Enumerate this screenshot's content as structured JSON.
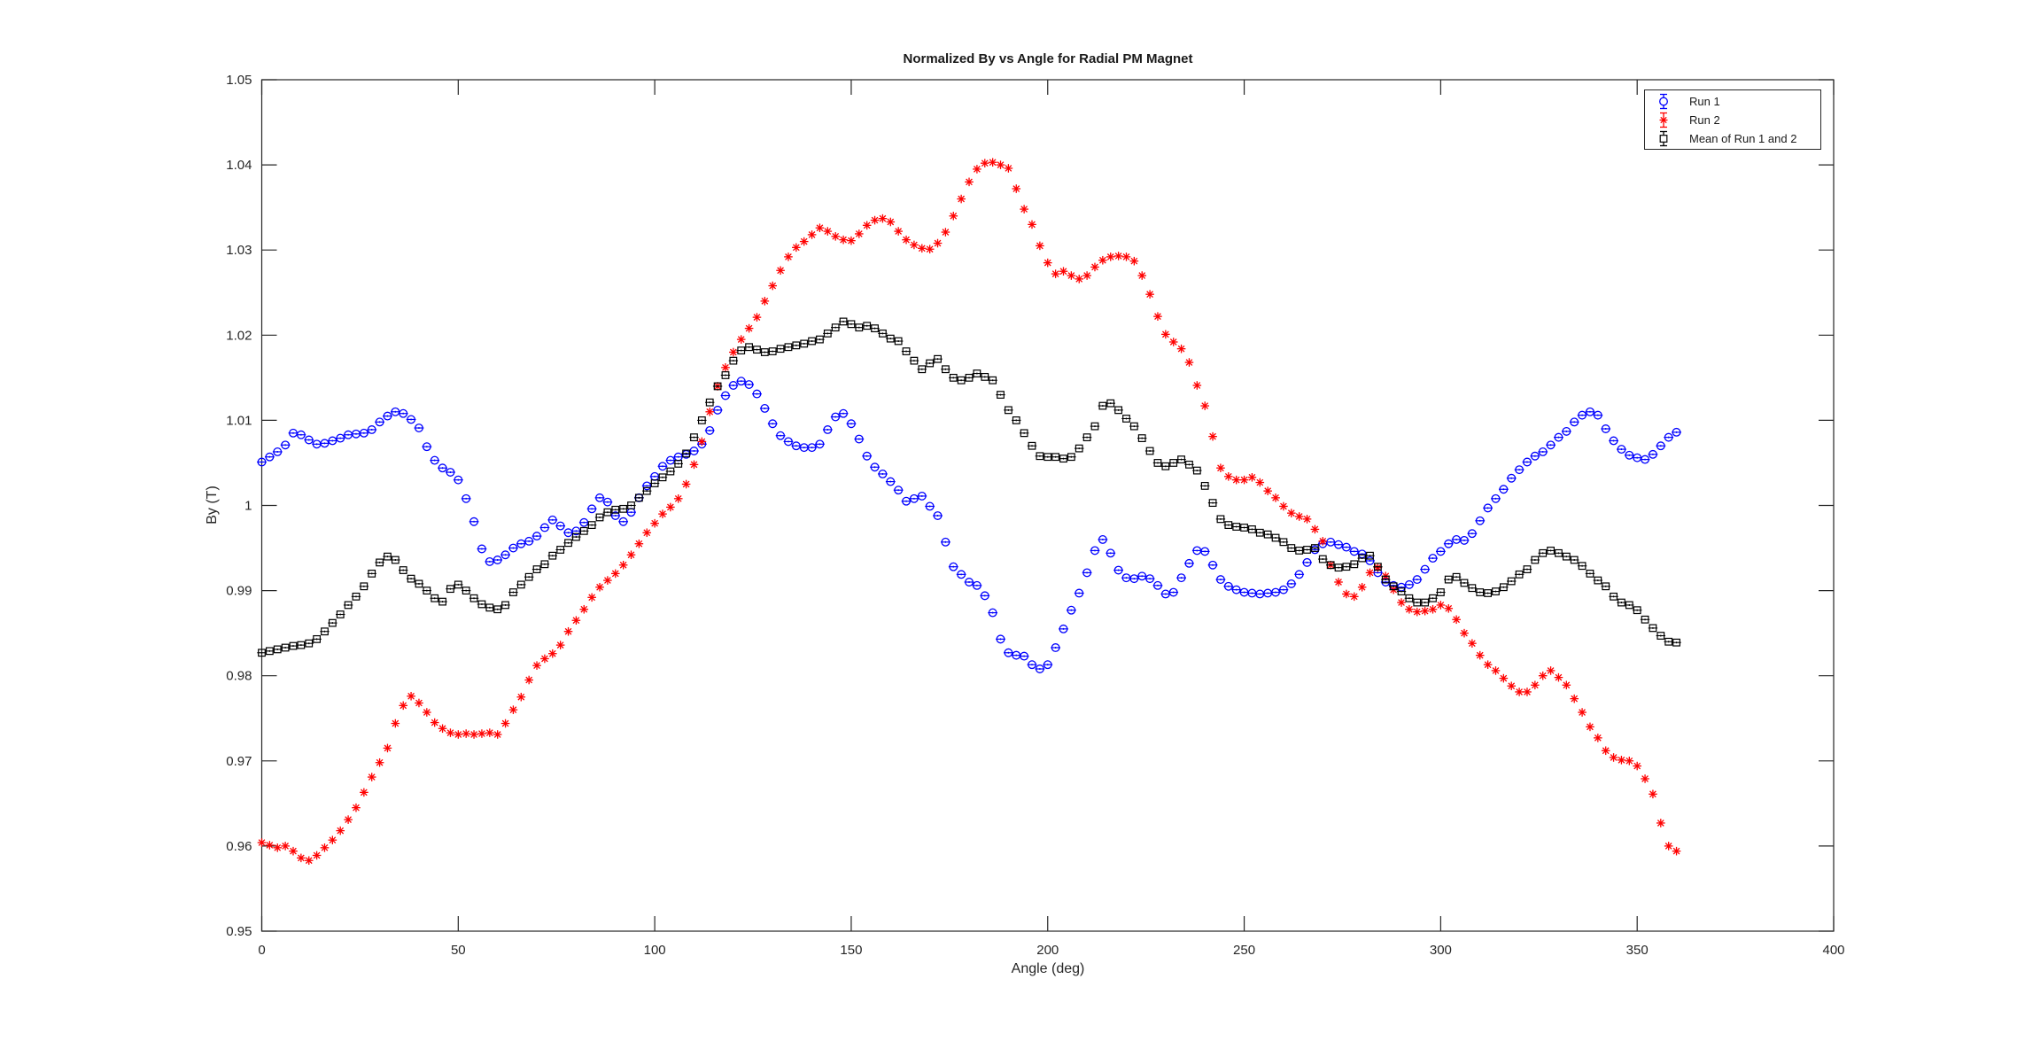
{
  "figure": {
    "title": "Normalized By vs Angle for Radial PM Magnet",
    "xlabel": "Angle (deg)",
    "ylabel": "By (T)"
  },
  "legend": {
    "position": "top-right",
    "items": [
      {
        "label": "Run 1",
        "marker": "circle-errorbar-icon",
        "color": "#0000ff"
      },
      {
        "label": "Run 2",
        "marker": "asterisk-errorbar-icon",
        "color": "#ff0000"
      },
      {
        "label": "Mean of Run 1 and 2",
        "marker": "square-errorbar-icon",
        "color": "#000000"
      }
    ]
  },
  "axis": {
    "xlim": [
      0,
      400
    ],
    "ylim": [
      0.95,
      1.05
    ],
    "xtick_values": [
      0,
      50,
      100,
      150,
      200,
      250,
      300,
      350,
      400
    ],
    "xtick_labels": [
      "0",
      "50",
      "100",
      "150",
      "200",
      "250",
      "300",
      "350",
      "400"
    ],
    "ytick_values": [
      0.95,
      0.96,
      0.97,
      0.98,
      0.99,
      1.0,
      1.01,
      1.02,
      1.03,
      1.04,
      1.05
    ],
    "ytick_labels": [
      "0.95",
      "0.96",
      "0.97",
      "0.98",
      "0.99",
      "1",
      "1.01",
      "1.02",
      "1.03",
      "1.04",
      "1.05"
    ],
    "grid": false,
    "axis_color": "#262626",
    "background": "#ffffff"
  },
  "chart_data": {
    "type": "scatter",
    "title": "Normalized By vs Angle for Radial PM Magnet",
    "xlabel": "Angle (deg)",
    "ylabel": "By (T)",
    "xlim": [
      0,
      400
    ],
    "ylim": [
      0.95,
      1.05
    ],
    "grid": false,
    "legend_position": "top-right",
    "x": [
      0,
      2,
      4,
      6,
      8,
      10,
      12,
      14,
      16,
      18,
      20,
      22,
      24,
      26,
      28,
      30,
      32,
      34,
      36,
      38,
      40,
      42,
      44,
      46,
      48,
      50,
      52,
      54,
      56,
      58,
      60,
      62,
      64,
      66,
      68,
      70,
      72,
      74,
      76,
      78,
      80,
      82,
      84,
      86,
      88,
      90,
      92,
      94,
      96,
      98,
      100,
      102,
      104,
      106,
      108,
      110,
      112,
      114,
      116,
      118,
      120,
      122,
      124,
      126,
      128,
      130,
      132,
      134,
      136,
      138,
      140,
      142,
      144,
      146,
      148,
      150,
      152,
      154,
      156,
      158,
      160,
      162,
      164,
      166,
      168,
      170,
      172,
      174,
      176,
      178,
      180,
      182,
      184,
      186,
      188,
      190,
      192,
      194,
      196,
      198,
      200,
      202,
      204,
      206,
      208,
      210,
      212,
      214,
      216,
      218,
      220,
      222,
      224,
      226,
      228,
      230,
      232,
      234,
      236,
      238,
      240,
      242,
      244,
      246,
      248,
      250,
      252,
      254,
      256,
      258,
      260,
      262,
      264,
      266,
      268,
      270,
      272,
      274,
      276,
      278,
      280,
      282,
      284,
      286,
      288,
      290,
      292,
      294,
      296,
      298,
      300,
      302,
      304,
      306,
      308,
      310,
      312,
      314,
      316,
      318,
      320,
      322,
      324,
      326,
      328,
      330,
      332,
      334,
      336,
      338,
      340,
      342,
      344,
      346,
      348,
      350,
      352,
      354,
      356,
      358,
      360
    ],
    "series": [
      {
        "name": "Run 1",
        "marker": "circle",
        "color": "#0000ff",
        "yerr": 0.0001,
        "y": [
          1.0051,
          1.0057,
          1.0063,
          1.0071,
          1.0085,
          1.0083,
          1.0077,
          1.0072,
          1.0073,
          1.0076,
          1.0079,
          1.0083,
          1.0084,
          1.0085,
          1.0089,
          1.0098,
          1.0105,
          1.011,
          1.0108,
          1.0101,
          1.0091,
          1.0069,
          1.0053,
          1.0044,
          1.0039,
          1.003,
          1.0008,
          0.9981,
          0.9949,
          0.9934,
          0.9936,
          0.9942,
          0.995,
          0.9955,
          0.9958,
          0.9964,
          0.9974,
          0.9983,
          0.9976,
          0.9968,
          0.997,
          0.998,
          0.9996,
          1.0009,
          1.0004,
          0.9988,
          0.9981,
          0.9992,
          1.0009,
          1.0023,
          1.0034,
          1.0046,
          1.0053,
          1.0057,
          1.006,
          1.0064,
          1.0072,
          1.0088,
          1.0112,
          1.0129,
          1.0141,
          1.0146,
          1.0142,
          1.0131,
          1.0114,
          1.0096,
          1.0082,
          1.0075,
          1.007,
          1.0068,
          1.0068,
          1.0072,
          1.0089,
          1.0104,
          1.0108,
          1.0096,
          1.0078,
          1.0058,
          1.0045,
          1.0037,
          1.0028,
          1.0018,
          1.0005,
          1.0008,
          1.0011,
          0.9999,
          0.9988,
          0.9957,
          0.9928,
          0.9919,
          0.991,
          0.9906,
          0.9894,
          0.9874,
          0.9843,
          0.9827,
          0.9824,
          0.9823,
          0.9813,
          0.9808,
          0.9813,
          0.9833,
          0.9855,
          0.9877,
          0.9897,
          0.9921,
          0.9947,
          0.996,
          0.9944,
          0.9924,
          0.9915,
          0.9914,
          0.9917,
          0.9914,
          0.9906,
          0.9896,
          0.9898,
          0.9915,
          0.9932,
          0.9947,
          0.9946,
          0.993,
          0.9913,
          0.9905,
          0.9901,
          0.9898,
          0.9897,
          0.9896,
          0.9897,
          0.9898,
          0.9901,
          0.9908,
          0.9919,
          0.9933,
          0.9948,
          0.9955,
          0.9957,
          0.9954,
          0.9951,
          0.9946,
          0.9943,
          0.9935,
          0.9921,
          0.991,
          0.9906,
          0.9904,
          0.9907,
          0.9913,
          0.9925,
          0.9938,
          0.9946,
          0.9955,
          0.996,
          0.9959,
          0.9967,
          0.9982,
          0.9997,
          1.0008,
          1.0019,
          1.0032,
          1.0042,
          1.0051,
          1.0058,
          1.0063,
          1.0071,
          1.008,
          1.0087,
          1.0098,
          1.0106,
          1.011,
          1.0106,
          1.009,
          1.0076,
          1.0066,
          1.0059,
          1.0056,
          1.0054,
          1.006,
          1.007,
          1.008,
          1.0086
        ]
      },
      {
        "name": "Run 2",
        "marker": "asterisk",
        "color": "#ff0000",
        "yerr": 0.0001,
        "y": [
          0.9604,
          0.9601,
          0.9598,
          0.96,
          0.9594,
          0.9586,
          0.9583,
          0.9589,
          0.9598,
          0.9607,
          0.9618,
          0.9631,
          0.9645,
          0.9663,
          0.9681,
          0.9698,
          0.9715,
          0.9744,
          0.9765,
          0.9776,
          0.9768,
          0.9757,
          0.9745,
          0.9738,
          0.9733,
          0.9731,
          0.9732,
          0.9731,
          0.9732,
          0.9733,
          0.9731,
          0.9744,
          0.976,
          0.9775,
          0.9795,
          0.9812,
          0.982,
          0.9826,
          0.9836,
          0.9852,
          0.9865,
          0.9878,
          0.9892,
          0.9904,
          0.9912,
          0.992,
          0.993,
          0.9942,
          0.9955,
          0.9968,
          0.9979,
          0.999,
          0.9998,
          1.0008,
          1.0025,
          1.0048,
          1.0075,
          1.011,
          1.014,
          1.0162,
          1.018,
          1.0195,
          1.0208,
          1.0221,
          1.024,
          1.0258,
          1.0276,
          1.0292,
          1.0303,
          1.031,
          1.0318,
          1.0326,
          1.0322,
          1.0316,
          1.0312,
          1.0311,
          1.0319,
          1.0329,
          1.0335,
          1.0337,
          1.0333,
          1.0322,
          1.0312,
          1.0306,
          1.0302,
          1.0301,
          1.0308,
          1.0321,
          1.034,
          1.036,
          1.038,
          1.0395,
          1.0402,
          1.0403,
          1.04,
          1.0396,
          1.0372,
          1.0348,
          1.033,
          1.0305,
          1.0285,
          1.0272,
          1.0275,
          1.027,
          1.0266,
          1.027,
          1.028,
          1.0288,
          1.0292,
          1.0293,
          1.0292,
          1.0287,
          1.027,
          1.0248,
          1.0222,
          1.0201,
          1.0192,
          1.0184,
          1.0168,
          1.0141,
          1.0117,
          1.0081,
          1.0044,
          1.0034,
          1.003,
          1.003,
          1.0033,
          1.0027,
          1.0017,
          1.0009,
          0.9999,
          0.9991,
          0.9987,
          0.9984,
          0.9972,
          0.9958,
          0.993,
          0.991,
          0.9896,
          0.9893,
          0.9904,
          0.9921,
          0.9927,
          0.9917,
          0.9901,
          0.9886,
          0.9878,
          0.9875,
          0.9876,
          0.9878,
          0.9883,
          0.9879,
          0.9866,
          0.985,
          0.9838,
          0.9824,
          0.9813,
          0.9806,
          0.9797,
          0.9788,
          0.9781,
          0.9781,
          0.9789,
          0.98,
          0.9806,
          0.9798,
          0.9789,
          0.9773,
          0.9757,
          0.974,
          0.9727,
          0.9712,
          0.9704,
          0.9701,
          0.97,
          0.9694,
          0.9679,
          0.9661,
          0.9627,
          0.96,
          0.9594
        ]
      },
      {
        "name": "Mean of Run 1 and 2",
        "marker": "square",
        "color": "#000000",
        "yerr": 0.0001,
        "y": [
          0.9827,
          0.9829,
          0.9831,
          0.9833,
          0.9835,
          0.9836,
          0.9838,
          0.9843,
          0.9852,
          0.9862,
          0.9872,
          0.9883,
          0.9893,
          0.9905,
          0.992,
          0.9933,
          0.994,
          0.9936,
          0.9924,
          0.9914,
          0.9908,
          0.99,
          0.9891,
          0.9887,
          0.9902,
          0.9907,
          0.99,
          0.9891,
          0.9884,
          0.988,
          0.9878,
          0.9883,
          0.9898,
          0.9907,
          0.9916,
          0.9925,
          0.9931,
          0.9941,
          0.9948,
          0.9956,
          0.9963,
          0.997,
          0.9977,
          0.9986,
          0.9992,
          0.9995,
          0.9996,
          1.0,
          1.0009,
          1.0017,
          1.0026,
          1.0033,
          1.004,
          1.0049,
          1.0061,
          1.008,
          1.01,
          1.0121,
          1.014,
          1.0153,
          1.017,
          1.0182,
          1.0186,
          1.0183,
          1.018,
          1.0181,
          1.0184,
          1.0186,
          1.0188,
          1.019,
          1.0193,
          1.0195,
          1.0202,
          1.0209,
          1.0216,
          1.0213,
          1.0209,
          1.0211,
          1.0208,
          1.0202,
          1.0196,
          1.0193,
          1.0181,
          1.017,
          1.016,
          1.0167,
          1.0172,
          1.016,
          1.015,
          1.0147,
          1.015,
          1.0155,
          1.0151,
          1.0147,
          1.013,
          1.0112,
          1.01,
          1.0085,
          1.007,
          1.0058,
          1.0057,
          1.0057,
          1.0055,
          1.0057,
          1.0067,
          1.008,
          1.0093,
          1.0117,
          1.012,
          1.0112,
          1.0102,
          1.0093,
          1.0079,
          1.0064,
          1.005,
          1.0046,
          1.005,
          1.0054,
          1.0048,
          1.0041,
          1.0023,
          1.0003,
          0.9984,
          0.9977,
          0.9975,
          0.9974,
          0.9972,
          0.9968,
          0.9966,
          0.9962,
          0.9957,
          0.995,
          0.9947,
          0.9948,
          0.995,
          0.9937,
          0.993,
          0.9927,
          0.9928,
          0.9931,
          0.9938,
          0.9941,
          0.9928,
          0.9913,
          0.9905,
          0.9899,
          0.9891,
          0.9886,
          0.9886,
          0.9891,
          0.9898,
          0.9913,
          0.9916,
          0.9909,
          0.9903,
          0.9898,
          0.9897,
          0.9899,
          0.9904,
          0.9911,
          0.9919,
          0.9925,
          0.9936,
          0.9944,
          0.9947,
          0.9944,
          0.994,
          0.9936,
          0.9929,
          0.992,
          0.9912,
          0.9905,
          0.9893,
          0.9886,
          0.9883,
          0.9877,
          0.9866,
          0.9856,
          0.9847,
          0.984,
          0.9839
        ]
      }
    ]
  }
}
